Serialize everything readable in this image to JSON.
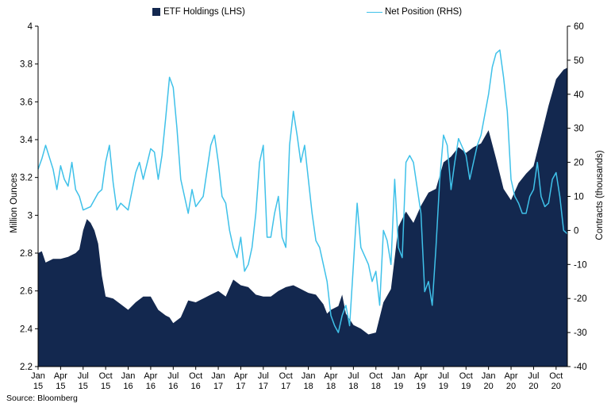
{
  "chart_data": {
    "type": "area+line",
    "xlabel": "",
    "x_ticks": [
      [
        "Jan",
        "15"
      ],
      [
        "Apr",
        "15"
      ],
      [
        "Jul",
        "15"
      ],
      [
        "Oct",
        "15"
      ],
      [
        "Jan",
        "16"
      ],
      [
        "Apr",
        "16"
      ],
      [
        "Jul",
        "16"
      ],
      [
        "Oct",
        "16"
      ],
      [
        "Jan",
        "17"
      ],
      [
        "Apr",
        "17"
      ],
      [
        "Jul",
        "17"
      ],
      [
        "Oct",
        "17"
      ],
      [
        "Jan",
        "18"
      ],
      [
        "Apr",
        "18"
      ],
      [
        "Jul",
        "18"
      ],
      [
        "Oct",
        "18"
      ],
      [
        "Jan",
        "19"
      ],
      [
        "Apr",
        "19"
      ],
      [
        "Jul",
        "19"
      ],
      [
        "Oct",
        "19"
      ],
      [
        "Jan",
        "20"
      ],
      [
        "Apr",
        "20"
      ],
      [
        "Jul",
        "20"
      ],
      [
        "Oct",
        "20"
      ]
    ],
    "left_axis": {
      "label": "Million Ounces",
      "ylim": [
        2.2,
        4.0
      ],
      "ticks": [
        "2.2",
        "2.4",
        "2.6",
        "2.8",
        "3",
        "3.2",
        "3.4",
        "3.6",
        "3.8",
        "4"
      ]
    },
    "right_axis": {
      "label": "Contracts (thousands)",
      "ylim": [
        -40,
        60
      ],
      "ticks": [
        "-40",
        "-30",
        "-20",
        "-10",
        "0",
        "10",
        "20",
        "30",
        "40",
        "50",
        "60"
      ]
    },
    "legend_placement": "top-center",
    "grid": false,
    "series": [
      {
        "name": "ETF Holdings (LHS)",
        "kind": "area",
        "axis": "left",
        "color": "#13284f",
        "points": [
          [
            0,
            2.8
          ],
          [
            0.5,
            2.81
          ],
          [
            1,
            2.75
          ],
          [
            2,
            2.77
          ],
          [
            3,
            2.77
          ],
          [
            4,
            2.78
          ],
          [
            5,
            2.8
          ],
          [
            5.5,
            2.82
          ],
          [
            6,
            2.92
          ],
          [
            6.5,
            2.98
          ],
          [
            7,
            2.96
          ],
          [
            7.5,
            2.92
          ],
          [
            8,
            2.85
          ],
          [
            8.5,
            2.68
          ],
          [
            9,
            2.57
          ],
          [
            10,
            2.56
          ],
          [
            11,
            2.53
          ],
          [
            12,
            2.5
          ],
          [
            13,
            2.54
          ],
          [
            14,
            2.57
          ],
          [
            15,
            2.57
          ],
          [
            16,
            2.5
          ],
          [
            17,
            2.47
          ],
          [
            17.5,
            2.46
          ],
          [
            18,
            2.43
          ],
          [
            19,
            2.46
          ],
          [
            20,
            2.55
          ],
          [
            21,
            2.54
          ],
          [
            22,
            2.56
          ],
          [
            23,
            2.58
          ],
          [
            24,
            2.6
          ],
          [
            25,
            2.57
          ],
          [
            26,
            2.66
          ],
          [
            27,
            2.63
          ],
          [
            28,
            2.62
          ],
          [
            29,
            2.58
          ],
          [
            30,
            2.57
          ],
          [
            31,
            2.57
          ],
          [
            32,
            2.6
          ],
          [
            33,
            2.62
          ],
          [
            34,
            2.63
          ],
          [
            35,
            2.61
          ],
          [
            36,
            2.59
          ],
          [
            37,
            2.58
          ],
          [
            38,
            2.53
          ],
          [
            38.5,
            2.48
          ],
          [
            39,
            2.5
          ],
          [
            40,
            2.52
          ],
          [
            40.5,
            2.58
          ],
          [
            41,
            2.48
          ],
          [
            42,
            2.42
          ],
          [
            43,
            2.4
          ],
          [
            44,
            2.37
          ],
          [
            45,
            2.38
          ],
          [
            46,
            2.54
          ],
          [
            47,
            2.61
          ],
          [
            48,
            2.94
          ],
          [
            49,
            3.02
          ],
          [
            50,
            2.96
          ],
          [
            51,
            3.05
          ],
          [
            52,
            3.12
          ],
          [
            53,
            3.14
          ],
          [
            54,
            3.28
          ],
          [
            55,
            3.31
          ],
          [
            56,
            3.36
          ],
          [
            57,
            3.33
          ],
          [
            58,
            3.36
          ],
          [
            59,
            3.38
          ],
          [
            60,
            3.45
          ],
          [
            61,
            3.3
          ],
          [
            62,
            3.14
          ],
          [
            63,
            3.08
          ],
          [
            64,
            3.17
          ],
          [
            65,
            3.22
          ],
          [
            66,
            3.26
          ],
          [
            67,
            3.42
          ],
          [
            68,
            3.58
          ],
          [
            69,
            3.72
          ],
          [
            70,
            3.77
          ],
          [
            70.5,
            3.78
          ]
        ]
      },
      {
        "name": "Net Position (RHS)",
        "kind": "line",
        "axis": "right",
        "color": "#3fc1e9",
        "points": [
          [
            0,
            18
          ],
          [
            0.5,
            21
          ],
          [
            1,
            25
          ],
          [
            2,
            18
          ],
          [
            2.5,
            12
          ],
          [
            3,
            19
          ],
          [
            3.5,
            15
          ],
          [
            4,
            13
          ],
          [
            4.5,
            20
          ],
          [
            5,
            12
          ],
          [
            5.5,
            10
          ],
          [
            6,
            6
          ],
          [
            7,
            7
          ],
          [
            8,
            11
          ],
          [
            8.5,
            12
          ],
          [
            9,
            20
          ],
          [
            9.5,
            25
          ],
          [
            10,
            14
          ],
          [
            10.5,
            6
          ],
          [
            11,
            8
          ],
          [
            12,
            6
          ],
          [
            13,
            17
          ],
          [
            13.5,
            20
          ],
          [
            14,
            15
          ],
          [
            15,
            24
          ],
          [
            15.5,
            23
          ],
          [
            16,
            15
          ],
          [
            16.5,
            22
          ],
          [
            17,
            33
          ],
          [
            17.5,
            45
          ],
          [
            18,
            42
          ],
          [
            18.5,
            30
          ],
          [
            19,
            15
          ],
          [
            19.5,
            10
          ],
          [
            20,
            5
          ],
          [
            20.5,
            12
          ],
          [
            21,
            7
          ],
          [
            22,
            10
          ],
          [
            23,
            25
          ],
          [
            23.5,
            28
          ],
          [
            24,
            20
          ],
          [
            24.5,
            10
          ],
          [
            25,
            8
          ],
          [
            25.5,
            0
          ],
          [
            26,
            -5
          ],
          [
            26.5,
            -8
          ],
          [
            27,
            -2
          ],
          [
            27.5,
            -12
          ],
          [
            28,
            -10
          ],
          [
            28.5,
            -5
          ],
          [
            29,
            5
          ],
          [
            29.5,
            20
          ],
          [
            30,
            25
          ],
          [
            30.5,
            -2
          ],
          [
            31,
            -2
          ],
          [
            31.5,
            5
          ],
          [
            32,
            10
          ],
          [
            32.5,
            -2
          ],
          [
            33,
            -5
          ],
          [
            33.5,
            25
          ],
          [
            34,
            35
          ],
          [
            34.5,
            28
          ],
          [
            35,
            20
          ],
          [
            35.5,
            25
          ],
          [
            36,
            15
          ],
          [
            36.5,
            5
          ],
          [
            37,
            -3
          ],
          [
            37.5,
            -5
          ],
          [
            38,
            -10
          ],
          [
            38.5,
            -15
          ],
          [
            39,
            -25
          ],
          [
            39.5,
            -28
          ],
          [
            40,
            -30
          ],
          [
            40.5,
            -25
          ],
          [
            41,
            -22
          ],
          [
            41.5,
            -28
          ],
          [
            42,
            -10
          ],
          [
            42.5,
            8
          ],
          [
            43,
            -5
          ],
          [
            44,
            -10
          ],
          [
            44.5,
            -15
          ],
          [
            45,
            -12
          ],
          [
            45.5,
            -22
          ],
          [
            46,
            0
          ],
          [
            46.5,
            -3
          ],
          [
            47,
            -10
          ],
          [
            47.5,
            15
          ],
          [
            48,
            -5
          ],
          [
            48.5,
            -8
          ],
          [
            49,
            20
          ],
          [
            49.5,
            22
          ],
          [
            50,
            20
          ],
          [
            51,
            5
          ],
          [
            51.5,
            -18
          ],
          [
            52,
            -15
          ],
          [
            52.5,
            -22
          ],
          [
            53,
            -5
          ],
          [
            53.5,
            15
          ],
          [
            54,
            28
          ],
          [
            54.5,
            25
          ],
          [
            55,
            12
          ],
          [
            55.5,
            20
          ],
          [
            56,
            27
          ],
          [
            57,
            22
          ],
          [
            57.5,
            15
          ],
          [
            58,
            20
          ],
          [
            58.5,
            25
          ],
          [
            59,
            28
          ],
          [
            60,
            40
          ],
          [
            60.5,
            48
          ],
          [
            61,
            52
          ],
          [
            61.5,
            53
          ],
          [
            62,
            45
          ],
          [
            62.5,
            35
          ],
          [
            63,
            15
          ],
          [
            63.5,
            10
          ],
          [
            64,
            8
          ],
          [
            64.5,
            5
          ],
          [
            65,
            5
          ],
          [
            65.5,
            10
          ],
          [
            66,
            12
          ],
          [
            66.5,
            20
          ],
          [
            67,
            10
          ],
          [
            67.5,
            7
          ],
          [
            68,
            8
          ],
          [
            68.5,
            15
          ],
          [
            69,
            17
          ],
          [
            69.5,
            10
          ],
          [
            70,
            0
          ],
          [
            70.5,
            -1
          ]
        ]
      }
    ],
    "source": "Source: Bloomberg"
  }
}
